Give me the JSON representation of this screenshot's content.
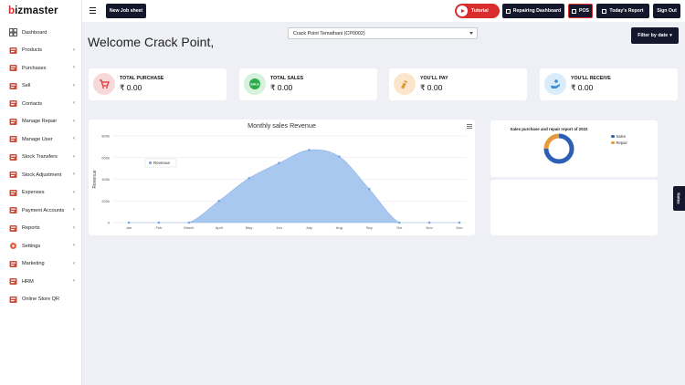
{
  "brand": {
    "name_b": "b",
    "name_rest": "izmaster"
  },
  "sidebar": {
    "items": [
      {
        "label": "Dashboard",
        "icon": "dashboard-icon",
        "has_submenu": false
      },
      {
        "label": "Products",
        "icon": "cart-icon",
        "has_submenu": true
      },
      {
        "label": "Purchases",
        "icon": "truck-icon",
        "has_submenu": true
      },
      {
        "label": "Sell",
        "icon": "register-icon",
        "has_submenu": true
      },
      {
        "label": "Contacts",
        "icon": "contacts-icon",
        "has_submenu": true
      },
      {
        "label": "Manage Repair",
        "icon": "wrench-icon",
        "has_submenu": true
      },
      {
        "label": "Manage User",
        "icon": "user-icon",
        "has_submenu": true
      },
      {
        "label": "Stock Transfers",
        "icon": "transfer-truck-icon",
        "has_submenu": true
      },
      {
        "label": "Stock Adjustment",
        "icon": "adjust-icon",
        "has_submenu": true
      },
      {
        "label": "Expenses",
        "icon": "wallet-icon",
        "has_submenu": true
      },
      {
        "label": "Payment Accounts",
        "icon": "bank-icon",
        "has_submenu": true
      },
      {
        "label": "Reports",
        "icon": "chart-icon",
        "has_submenu": true
      },
      {
        "label": "Settings",
        "icon": "gear-icon",
        "has_submenu": true
      },
      {
        "label": "Marketing",
        "icon": "megaphone-icon",
        "has_submenu": true
      },
      {
        "label": "HRM",
        "icon": "hierarchy-icon",
        "has_submenu": true
      },
      {
        "label": "Online Store QR",
        "icon": "qr-icon",
        "has_submenu": false
      }
    ]
  },
  "topbar": {
    "new_job_sheet": "New Job sheet",
    "tutorial": "Tutorial",
    "repairing_dashboard": "Repairing Dashboard",
    "pos": "POS",
    "todays_report": "Today's Report",
    "sign_out": "Sign Out"
  },
  "main": {
    "welcome": "Welcome Crack Point,",
    "location_select": "Crack Point Temathani (CP0002)",
    "filter_button": "Filter by date"
  },
  "cards": [
    {
      "label": "TOTAL PURCHASE",
      "value": "₹ 0.00",
      "icon": "cart-icon",
      "color": "#f8d9d9",
      "fg": "#d92d2d"
    },
    {
      "label": "TOTAL SALES",
      "value": "₹ 0.00",
      "icon": "sale-tag-icon",
      "color": "#d7f2dc",
      "fg": "#2eaa4a"
    },
    {
      "label": "YOU'LL PAY",
      "value": "₹ 0.00",
      "icon": "pay-hand-icon",
      "color": "#fbe6cc",
      "fg": "#e39b3a"
    },
    {
      "label": "YOU'LL RECEIVE",
      "value": "₹ 0.00",
      "icon": "receive-hand-icon",
      "color": "#d9ecfa",
      "fg": "#3a8fd6"
    }
  ],
  "chart_data": [
    {
      "type": "area",
      "title": "Monthly sales Revenue",
      "ylabel": "Revenue",
      "categories": [
        "Jan",
        "Feb",
        "March",
        "April",
        "May",
        "Jun",
        "July",
        "Aug",
        "Sep",
        "Oct",
        "Nov",
        "Dec"
      ],
      "series": [
        {
          "name": "Revenue",
          "values": [
            0,
            0,
            0,
            200000,
            410000,
            550000,
            670000,
            610000,
            310000,
            0,
            0,
            0
          ]
        }
      ],
      "y_ticks": [
        "0",
        "200k",
        "400k",
        "600k",
        "800k"
      ],
      "ylim": [
        0,
        800000
      ],
      "grid": true,
      "legend_position": "top-left",
      "color": "#a9c8ef"
    },
    {
      "type": "pie",
      "title": "Sales purchase and repair report of 2022",
      "series": [
        {
          "name": "Sales",
          "values": [
            75
          ]
        },
        {
          "name": "Repair",
          "values": [
            25
          ]
        }
      ],
      "colors": [
        "#2e5fb5",
        "#e69a3a"
      ],
      "legend_position": "right"
    }
  ],
  "notes_tab": "Notes"
}
